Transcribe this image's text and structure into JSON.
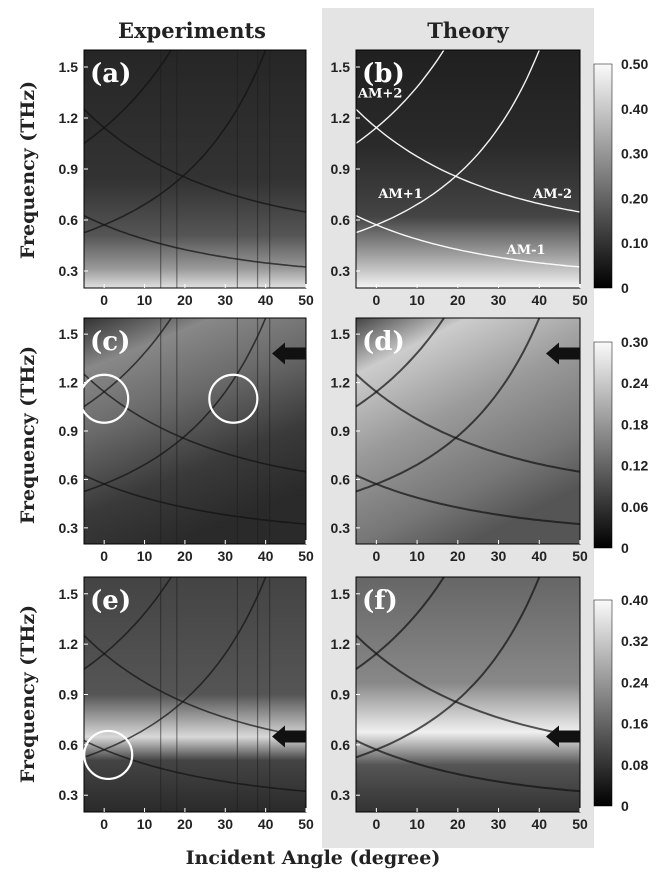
{
  "headers": {
    "left": "Experiments",
    "right": "Theory"
  },
  "ylabel": "Frequency (THz)",
  "xlabel": "Incident Angle (degree)",
  "colors": {
    "theory_background": "#e4e4e4",
    "arrow": "#111111",
    "marker_circle": "#ffffff",
    "mode_line": "#ffffff"
  },
  "chart_data": [
    {
      "panel": "a",
      "label": "(a)",
      "type": "heatmap",
      "column": "Experiments",
      "xlim": [
        -5,
        50
      ],
      "ylim": [
        0.2,
        1.6
      ],
      "xticks": [
        "0",
        "10",
        "20",
        "30",
        "40",
        "50"
      ],
      "yticks": [
        "0.3",
        "0.6",
        "0.9",
        "1.2",
        "1.5"
      ]
    },
    {
      "panel": "b",
      "label": "(b)",
      "type": "heatmap",
      "column": "Theory",
      "xlim": [
        -5,
        50
      ],
      "ylim": [
        0.2,
        1.6
      ],
      "xticks": [
        "0",
        "10",
        "20",
        "30",
        "40",
        "50"
      ],
      "yticks": [
        "0.3",
        "0.6",
        "0.9",
        "1.2",
        "1.5"
      ],
      "colorbar": {
        "range": [
          0,
          0.5
        ],
        "ticks": [
          "0.50",
          "0.40",
          "0.30",
          "0.20",
          "0.10",
          "0"
        ]
      },
      "mode_labels": [
        "AM+2",
        "AM+1",
        "AM-2",
        "AM-1"
      ]
    },
    {
      "panel": "c",
      "label": "(c)",
      "type": "heatmap",
      "column": "Experiments",
      "xlim": [
        -5,
        50
      ],
      "ylim": [
        0.2,
        1.6
      ],
      "xticks": [
        "0",
        "10",
        "20",
        "30",
        "40",
        "50"
      ],
      "yticks": [
        "0.3",
        "0.6",
        "0.9",
        "1.2",
        "1.5"
      ],
      "circles": [
        {
          "angle": 0,
          "freq": 1.1
        },
        {
          "angle": 32,
          "freq": 1.1
        }
      ],
      "arrow_freq": 1.38
    },
    {
      "panel": "d",
      "label": "(d)",
      "type": "heatmap",
      "column": "Theory",
      "xlim": [
        -5,
        50
      ],
      "ylim": [
        0.2,
        1.6
      ],
      "xticks": [
        "0",
        "10",
        "20",
        "30",
        "40",
        "50"
      ],
      "yticks": [
        "0.3",
        "0.6",
        "0.9",
        "1.2",
        "1.5"
      ],
      "colorbar": {
        "range": [
          0,
          0.3
        ],
        "ticks": [
          "0.30",
          "0.24",
          "0.18",
          "0.12",
          "0.06",
          "0"
        ]
      },
      "arrow_freq": 1.38
    },
    {
      "panel": "e",
      "label": "(e)",
      "type": "heatmap",
      "column": "Experiments",
      "xlim": [
        -5,
        50
      ],
      "ylim": [
        0.2,
        1.6
      ],
      "xticks": [
        "0",
        "10",
        "20",
        "30",
        "40",
        "50"
      ],
      "yticks": [
        "0.3",
        "0.6",
        "0.9",
        "1.2",
        "1.5"
      ],
      "circles": [
        {
          "angle": 1,
          "freq": 0.54
        }
      ],
      "arrow_freq": 0.65
    },
    {
      "panel": "f",
      "label": "(f)",
      "type": "heatmap",
      "column": "Theory",
      "xlim": [
        -5,
        50
      ],
      "ylim": [
        0.2,
        1.6
      ],
      "xticks": [
        "0",
        "10",
        "20",
        "30",
        "40",
        "50"
      ],
      "yticks": [
        "0.3",
        "0.6",
        "0.9",
        "1.2",
        "1.5"
      ],
      "colorbar": {
        "range": [
          0,
          0.4
        ],
        "ticks": [
          "0.40",
          "0.32",
          "0.24",
          "0.16",
          "0.08",
          "0"
        ]
      },
      "arrow_freq": 0.65
    }
  ]
}
